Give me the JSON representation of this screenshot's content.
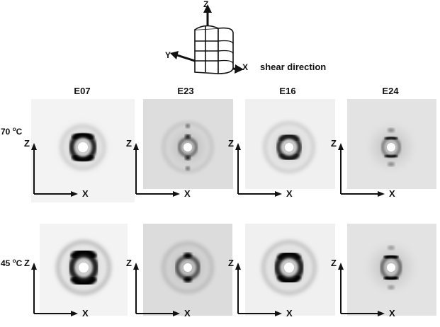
{
  "geometry_sketch": {
    "axes": {
      "z": "Z",
      "y": "Y",
      "x": "X"
    },
    "shear_label": "shear direction"
  },
  "columns": [
    "E07",
    "E23",
    "E16",
    "E24"
  ],
  "rows": [
    {
      "temp_value": "70",
      "temp_sup": "o",
      "temp_unit": "C"
    },
    {
      "temp_value": "45",
      "temp_sup": "o",
      "temp_unit": "C"
    }
  ],
  "panel_axes": {
    "vertical": "Z",
    "horizontal": "X"
  },
  "panels": {
    "row0": [
      "E07",
      "E23",
      "E16",
      "E24"
    ],
    "row1": [
      "E07",
      "E23",
      "E16",
      "E24"
    ]
  },
  "colors": {
    "ink": "#111111",
    "panel_bg_light": "#f2f2f2",
    "panel_bg_dark": "#dcdcdc"
  }
}
